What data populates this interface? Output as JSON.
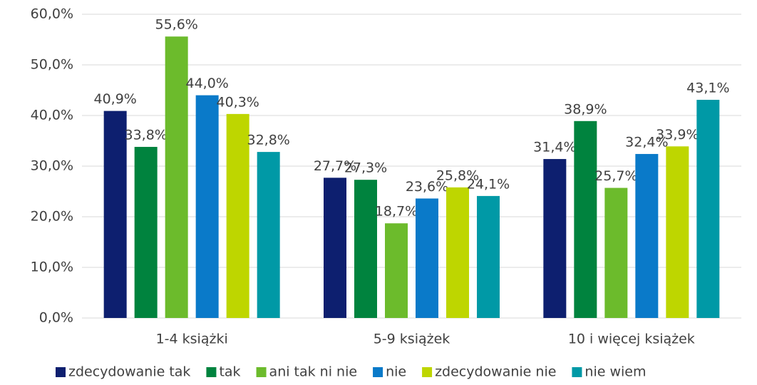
{
  "chart_data": {
    "type": "bar",
    "categories": [
      "1-4 książki",
      "5-9 książek",
      "10 i więcej książek"
    ],
    "series": [
      {
        "name": "zdecydowanie tak",
        "color": "#0d1f6f",
        "values": [
          40.9,
          27.7,
          31.4
        ],
        "value_labels": [
          "40,9%",
          "27,7%",
          "31,4%"
        ]
      },
      {
        "name": "tak",
        "color": "#00833e",
        "values": [
          33.8,
          27.3,
          38.9
        ],
        "value_labels": [
          "33,8%",
          "27,3%",
          "38,9%"
        ]
      },
      {
        "name": "ani tak ni nie",
        "color": "#6cbb2c",
        "values": [
          55.6,
          18.7,
          25.7
        ],
        "value_labels": [
          "55,6%",
          "18,7%",
          "25,7%"
        ]
      },
      {
        "name": "nie",
        "color": "#0a7ac9",
        "values": [
          44.0,
          23.6,
          32.4
        ],
        "value_labels": [
          "44,0%",
          "23,6%",
          "32,4%"
        ]
      },
      {
        "name": "zdecydowanie nie",
        "color": "#bed600",
        "values": [
          40.3,
          25.8,
          33.9
        ],
        "value_labels": [
          "40,3%",
          "25,8%",
          "33,9%"
        ]
      },
      {
        "name": "nie wiem",
        "color": "#0099a6",
        "values": [
          32.8,
          24.1,
          43.1
        ],
        "value_labels": [
          "32,8%",
          "24,1%",
          "43,1%"
        ]
      }
    ],
    "ylim": [
      0,
      60
    ],
    "yticks": [
      {
        "value": 0,
        "label": "0,0%"
      },
      {
        "value": 10,
        "label": "10,0%"
      },
      {
        "value": 20,
        "label": "20,0%"
      },
      {
        "value": 30,
        "label": "30,0%"
      },
      {
        "value": 40,
        "label": "40,0%"
      },
      {
        "value": 50,
        "label": "50,0%"
      },
      {
        "value": 60,
        "label": "60,0%"
      }
    ],
    "grid": true
  }
}
